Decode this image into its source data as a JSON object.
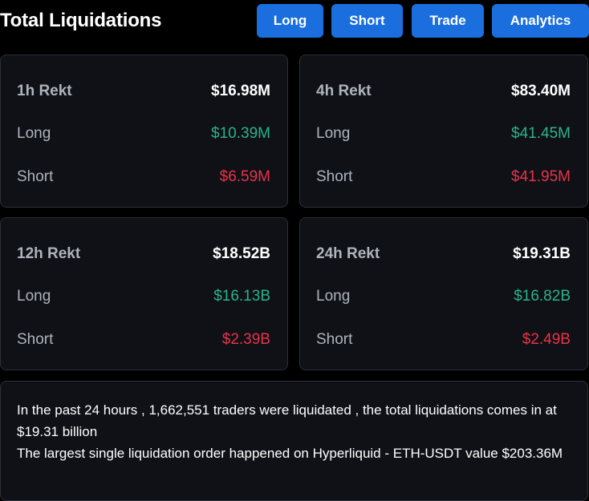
{
  "header": {
    "title": "Total Liquidations",
    "buttons": [
      "Long",
      "Short",
      "Trade",
      "Analytics"
    ]
  },
  "cards": [
    {
      "period": "1h Rekt",
      "total": "$16.98M",
      "long_label": "Long",
      "long": "$10.39M",
      "short_label": "Short",
      "short": "$6.59M"
    },
    {
      "period": "4h Rekt",
      "total": "$83.40M",
      "long_label": "Long",
      "long": "$41.45M",
      "short_label": "Short",
      "short": "$41.95M"
    },
    {
      "period": "12h Rekt",
      "total": "$18.52B",
      "long_label": "Long",
      "long": "$16.13B",
      "short_label": "Short",
      "short": "$2.39B"
    },
    {
      "period": "24h Rekt",
      "total": "$19.31B",
      "long_label": "Long",
      "long": "$16.82B",
      "short_label": "Short",
      "short": "$2.49B"
    }
  ],
  "summary": {
    "line1": "In the past 24 hours , 1,662,551 traders were liquidated , the total liquidations comes in at $19.31 billion",
    "line2": "The largest single liquidation order happened on Hyperliquid - ETH-USDT value $203.36M"
  },
  "colors": {
    "accent": "#1a6ede",
    "long": "#2ab38b",
    "short": "#e8334a",
    "card_bg": "#0f1116"
  }
}
